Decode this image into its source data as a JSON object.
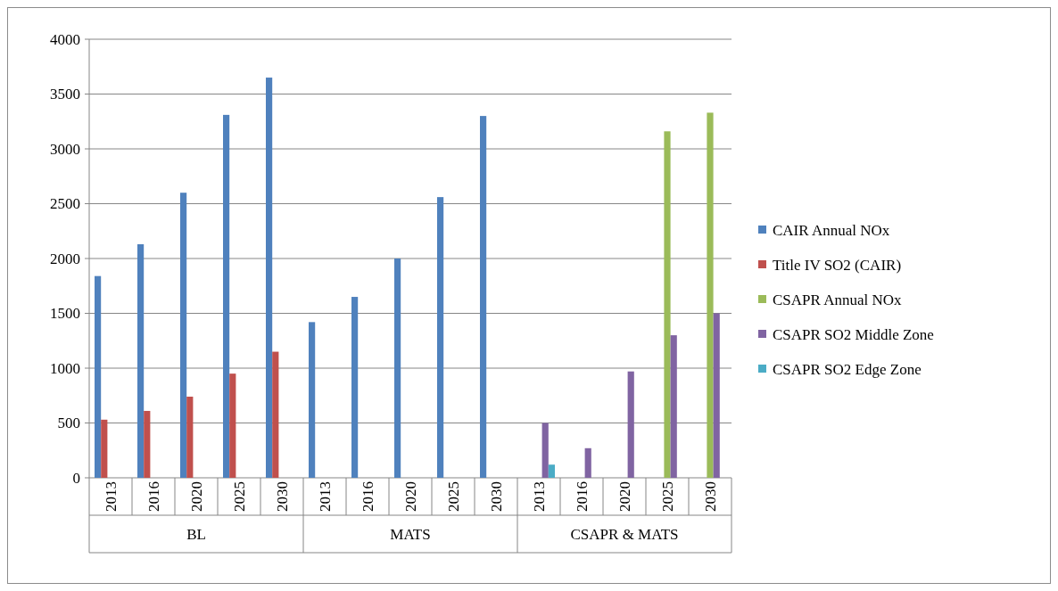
{
  "chart_data": {
    "type": "bar",
    "categories": [
      "2013",
      "2016",
      "2020",
      "2025",
      "2030",
      "2013",
      "2016",
      "2020",
      "2025",
      "2030",
      "2013",
      "2016",
      "2020",
      "2025",
      "2030"
    ],
    "series": [
      {
        "name": "CAIR Annual NOx",
        "color": "#4f81bd",
        "values": [
          1840,
          2130,
          2600,
          3310,
          3650,
          1420,
          1650,
          2000,
          2560,
          3300,
          null,
          null,
          null,
          null,
          null
        ]
      },
      {
        "name": "Title IV SO2 (CAIR)",
        "color": "#c0504d",
        "values": [
          530,
          610,
          740,
          950,
          1150,
          null,
          null,
          null,
          null,
          null,
          null,
          null,
          null,
          null,
          null
        ]
      },
      {
        "name": "CSAPR Annual NOx",
        "color": "#9bbb59",
        "values": [
          null,
          null,
          null,
          null,
          null,
          null,
          null,
          null,
          null,
          null,
          null,
          null,
          null,
          3160,
          3330
        ]
      },
      {
        "name": "CSAPR SO2 Middle Zone",
        "color": "#8064a2",
        "values": [
          null,
          null,
          null,
          null,
          null,
          null,
          null,
          null,
          null,
          null,
          500,
          270,
          970,
          1300,
          1500
        ]
      },
      {
        "name": "CSAPR SO2 Edge Zone",
        "color": "#4bacc6",
        "values": [
          null,
          null,
          null,
          null,
          null,
          null,
          null,
          null,
          null,
          null,
          120,
          null,
          null,
          null,
          null
        ]
      }
    ],
    "annotations": [
      "BL",
      "MATS",
      "CSAPR & MATS"
    ],
    "ylim": [
      0,
      4000
    ],
    "yticks": [
      0,
      500,
      1000,
      1500,
      2000,
      2500,
      3000,
      3500,
      4000
    ],
    "grid": "y",
    "legend": "right"
  }
}
